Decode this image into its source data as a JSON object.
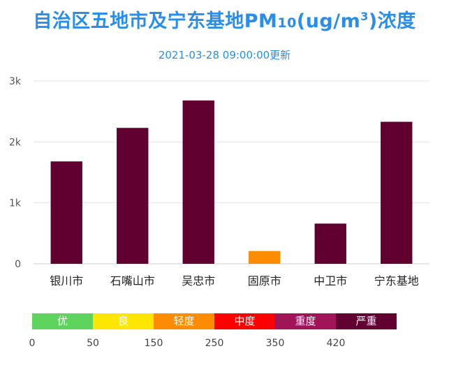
{
  "title": {
    "main": "自治区五地市及宁东基地PM",
    "sub": "10",
    "unit_open": "(ug/m",
    "unit_sup": "3",
    "unit_close": ")浓度"
  },
  "subtitle": "2021-03-28 09:00:00更新",
  "colors": {
    "title": "#2a8ee8",
    "severe": "#610030",
    "light": "#ff8c00",
    "gridline": "#e3e6ea",
    "axis": "#cccccc"
  },
  "chart_data": {
    "type": "bar",
    "categories": [
      "银川市",
      "石嘴山市",
      "吴忠市",
      "固原市",
      "中卫市",
      "宁东基地"
    ],
    "values": [
      1680,
      2230,
      2680,
      210,
      660,
      2330
    ],
    "bar_colors": [
      "#610030",
      "#610030",
      "#610030",
      "#ff8c00",
      "#610030",
      "#610030"
    ],
    "ylim": [
      0,
      3000
    ],
    "yticks": [
      0,
      1000,
      2000,
      3000
    ],
    "ytick_labels": [
      "0",
      "1k",
      "2k",
      "3k"
    ],
    "grid": true
  },
  "legend": {
    "levels": [
      {
        "label": "优",
        "color": "#5ed35e"
      },
      {
        "label": "良",
        "color": "#ffe600"
      },
      {
        "label": "轻度",
        "color": "#ff8c00"
      },
      {
        "label": "中度",
        "color": "#ff0000"
      },
      {
        "label": "重度",
        "color": "#a01558"
      },
      {
        "label": "严重",
        "color": "#610030"
      }
    ],
    "thresholds": [
      "0",
      "50",
      "150",
      "250",
      "350",
      "420"
    ]
  }
}
